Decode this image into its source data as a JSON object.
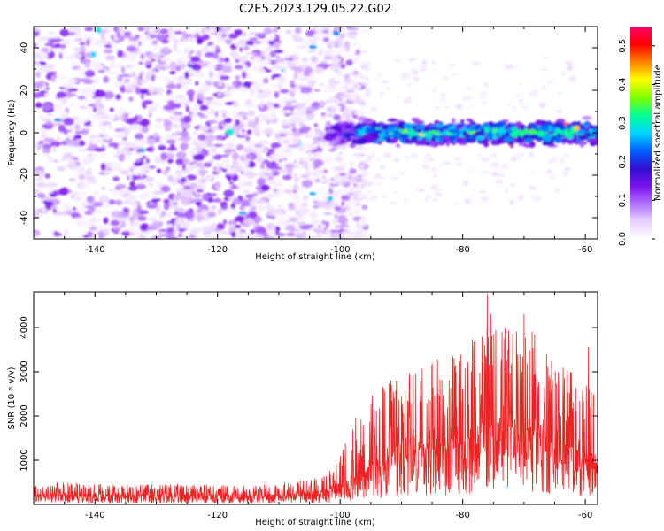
{
  "figure_title": "C2E5.2023.129.05.22.G02",
  "chart_data": [
    {
      "type": "heatmap",
      "title": "C2E5.2023.129.05.22.G02",
      "xlabel": "Height of straight line (km)",
      "ylabel": "Frequency (Hz)",
      "xlim": [
        -150,
        -58
      ],
      "ylim": [
        -50,
        50
      ],
      "xticks": [
        -140,
        -120,
        -100,
        -80,
        -60
      ],
      "xtick_labels": [
        "-140",
        "-120",
        "-100",
        "-80",
        "-60"
      ],
      "yticks": [
        -40,
        -20,
        0,
        20,
        40
      ],
      "ytick_labels": [
        "-40",
        "-20",
        "0",
        "20",
        "40"
      ],
      "colorbar": {
        "label": "Normalized spectral amplitude",
        "range": [
          0,
          0.55
        ],
        "ticks": [
          0,
          0.1,
          0.2,
          0.3,
          0.4,
          0.5
        ],
        "tick_labels": [
          "0.0",
          "0.1",
          "0.2",
          "0.3",
          "0.4",
          "0.5"
        ],
        "colors": [
          "#ffffff",
          "#e8d0ff",
          "#b070ff",
          "#7a10f0",
          "#3010d0",
          "#0060ff",
          "#00d8ff",
          "#00ff90",
          "#80ff00",
          "#ffff00",
          "#ff8000",
          "#ff0000",
          "#ff0070"
        ]
      },
      "regions": [
        {
          "name": "scattered noise",
          "x_range": [
            -150,
            -100
          ],
          "freq_range": [
            -50,
            50
          ],
          "typical_amplitude": 0.06
        },
        {
          "name": "carrier line",
          "x_range": [
            -102,
            -58
          ],
          "center_freq": 0,
          "half_width_hz": 6,
          "typical_amplitude": 0.25,
          "peak_amplitude": 0.52
        }
      ]
    },
    {
      "type": "line",
      "xlabel": "Height of straight line (km)",
      "ylabel": "SNR (10 * v/v)",
      "xlim": [
        -150,
        -58
      ],
      "ylim": [
        0,
        4800
      ],
      "xticks": [
        -140,
        -120,
        -100,
        -80,
        -60
      ],
      "xtick_labels": [
        "-140",
        "-120",
        "-100",
        "-80",
        "-60"
      ],
      "yticks": [
        1000,
        2000,
        3000,
        4000
      ],
      "ytick_labels": [
        "1000",
        "2000",
        "3000",
        "4000"
      ],
      "color": "#ee2222",
      "series": [
        {
          "name": "SNR",
          "x": [
            -150,
            -145,
            -140,
            -135,
            -130,
            -125,
            -120,
            -115,
            -110,
            -105,
            -102,
            -100,
            -98,
            -96,
            -94,
            -92,
            -90,
            -88,
            -86,
            -84,
            -82,
            -80,
            -78,
            -76,
            -74,
            -72,
            -70,
            -68,
            -66,
            -64,
            -62,
            -60,
            -58
          ],
          "baseline": [
            220,
            230,
            215,
            220,
            210,
            215,
            205,
            200,
            220,
            260,
            320,
            420,
            550,
            750,
            950,
            1100,
            1150,
            1200,
            1250,
            1300,
            1350,
            1400,
            1550,
            1700,
            1800,
            1750,
            1700,
            1650,
            1550,
            1400,
            1250,
            1050,
            900
          ],
          "peak": [
            480,
            500,
            470,
            460,
            450,
            470,
            440,
            430,
            480,
            560,
            750,
            1100,
            1800,
            2400,
            2700,
            2800,
            2900,
            3000,
            3100,
            3300,
            3400,
            3500,
            3800,
            4750,
            4100,
            4000,
            4300,
            3900,
            3600,
            3300,
            3000,
            2700,
            2600
          ],
          "noted_peaks": [
            {
              "x": -76,
              "y": 4750
            },
            {
              "x": -70,
              "y": 4300
            },
            {
              "x": -59.5,
              "y": 3550
            }
          ]
        }
      ]
    }
  ]
}
